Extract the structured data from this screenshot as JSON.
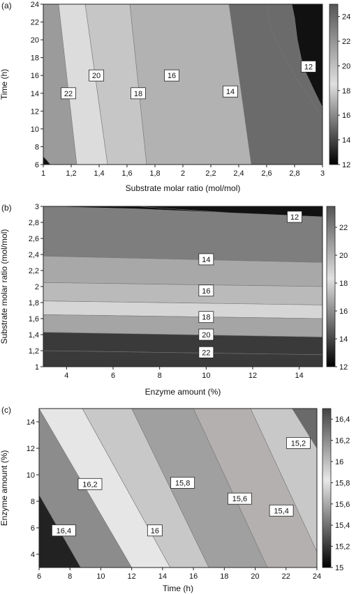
{
  "chart_data": [
    {
      "type": "contour",
      "panel_label": "(a)",
      "xlabel": "Substrate molar ratio (mol/mol)",
      "ylabel": "Time (h)",
      "xlim": [
        1,
        3
      ],
      "ylim": [
        6,
        24
      ],
      "xticks": [
        "1",
        "1,2",
        "1,4",
        "1,6",
        "1,8",
        "2",
        "2,2",
        "2,4",
        "2,6",
        "2,8",
        "3"
      ],
      "yticks": [
        "6",
        "8",
        "10",
        "12",
        "14",
        "16",
        "18",
        "20",
        "22",
        "24"
      ],
      "colorbar": {
        "min": 12,
        "max": 25,
        "ticks": [
          "12",
          "14",
          "16",
          "18",
          "20",
          "22",
          "24"
        ]
      },
      "contour_labels": [
        "22",
        "20",
        "18",
        "16",
        "14",
        "12"
      ],
      "bands": [
        {
          "value": 11,
          "color": "#111111"
        },
        {
          "value": 13,
          "color": "#6b6b6b"
        },
        {
          "value": 15,
          "color": "#8e8e8e"
        },
        {
          "value": 17,
          "color": "#b2b2b2"
        },
        {
          "value": 19,
          "color": "#c6c6c6"
        },
        {
          "value": 21,
          "color": "#dcdcdc"
        },
        {
          "value": 22.5,
          "color": "#9b9b9b"
        }
      ]
    },
    {
      "type": "contour",
      "panel_label": "(b)",
      "xlabel": "Enzyme amount (%)",
      "ylabel": "Substrate molar ratio (mol/mol)",
      "xlim": [
        3,
        15
      ],
      "ylim": [
        1,
        3
      ],
      "xticks": [
        "4",
        "6",
        "8",
        "10",
        "12",
        "14"
      ],
      "yticks": [
        "1",
        "1,2",
        "1,4",
        "1,6",
        "1,8",
        "2",
        "2,2",
        "2,4",
        "2,6",
        "2,8",
        "3"
      ],
      "colorbar": {
        "min": 12,
        "max": 23.5,
        "ticks": [
          "12",
          "14",
          "16",
          "18",
          "20",
          "22"
        ]
      },
      "contour_labels": [
        "12",
        "14",
        "16",
        "18",
        "20",
        "22"
      ],
      "bands": [
        {
          "value": 11,
          "color": "#111111"
        },
        {
          "value": 13,
          "color": "#7e7e7e"
        },
        {
          "value": 15,
          "color": "#a8a8a8"
        },
        {
          "value": 17,
          "color": "#bababa"
        },
        {
          "value": 19,
          "color": "#d6d6d6"
        },
        {
          "value": 21,
          "color": "#a5a5a5"
        },
        {
          "value": 22.5,
          "color": "#3a3a3a"
        }
      ]
    },
    {
      "type": "contour",
      "panel_label": "(c)",
      "xlabel": "Time (h)",
      "ylabel": "Enzyme amount (%)",
      "xlim": [
        6,
        24
      ],
      "ylim": [
        3,
        15
      ],
      "xticks": [
        "6",
        "8",
        "10",
        "12",
        "14",
        "16",
        "18",
        "20",
        "22",
        "24"
      ],
      "yticks": [
        "4",
        "6",
        "8",
        "10",
        "12",
        "14"
      ],
      "colorbar": {
        "min": 15,
        "max": 16.5,
        "ticks": [
          "15",
          "15,2",
          "15,4",
          "15,6",
          "15,8",
          "16",
          "16,2",
          "16,4"
        ]
      },
      "contour_labels": [
        "16,4",
        "16,2",
        "16",
        "15,8",
        "15,6",
        "15,4",
        "15,2"
      ],
      "bands": [
        {
          "value": 16.5,
          "color": "#222222"
        },
        {
          "value": 16.3,
          "color": "#8c8c8c"
        },
        {
          "value": 16.1,
          "color": "#e6e6e6"
        },
        {
          "value": 15.9,
          "color": "#c8c8c8"
        },
        {
          "value": 15.7,
          "color": "#a0a0a0"
        },
        {
          "value": 15.5,
          "color": "#b5b0b0"
        },
        {
          "value": 15.3,
          "color": "#c8c8c8"
        },
        {
          "value": 15.1,
          "color": "#6a6a6a"
        }
      ]
    }
  ]
}
